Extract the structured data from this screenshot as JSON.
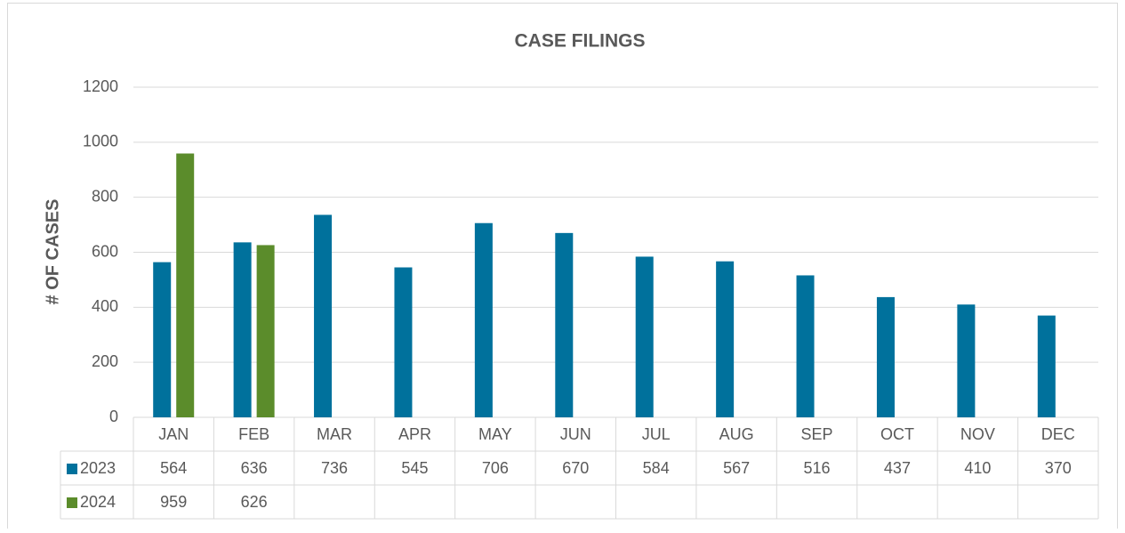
{
  "chart_data": {
    "type": "bar",
    "title": "CASE FILINGS",
    "y_label": "# OF CASES",
    "categories": [
      "JAN",
      "FEB",
      "MAR",
      "APR",
      "MAY",
      "JUN",
      "JUL",
      "AUG",
      "SEP",
      "OCT",
      "NOV",
      "DEC"
    ],
    "series": [
      {
        "name": "2023",
        "color": "#00719c",
        "values": [
          564,
          636,
          736,
          545,
          706,
          670,
          584,
          567,
          516,
          437,
          410,
          370
        ]
      },
      {
        "name": "2024",
        "color": "#5b8c2b",
        "values": [
          959,
          626,
          null,
          null,
          null,
          null,
          null,
          null,
          null,
          null,
          null,
          null
        ]
      }
    ],
    "ylim": [
      0,
      1200
    ],
    "yticks": [
      0,
      200,
      400,
      600,
      800,
      1000,
      1200
    ],
    "grid": true,
    "data_table": true
  }
}
